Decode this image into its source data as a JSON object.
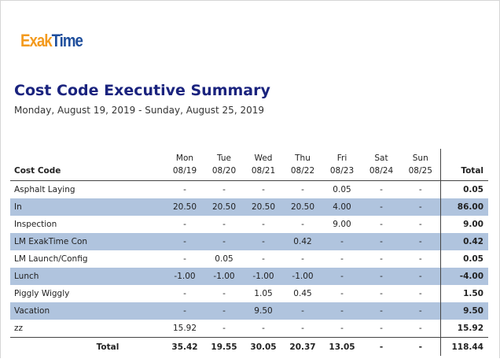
{
  "logo": {
    "part1": "Exak",
    "part2": "Time"
  },
  "report": {
    "title": "Cost Code Executive Summary",
    "date_range": "Monday, August 19, 2019 - Sunday, August 25, 2019"
  },
  "table": {
    "code_header": "Cost Code",
    "total_header": "Total",
    "days": [
      {
        "day": "Mon",
        "date": "08/19"
      },
      {
        "day": "Tue",
        "date": "08/20"
      },
      {
        "day": "Wed",
        "date": "08/21"
      },
      {
        "day": "Thu",
        "date": "08/22"
      },
      {
        "day": "Fri",
        "date": "08/23"
      },
      {
        "day": "Sat",
        "date": "08/24"
      },
      {
        "day": "Sun",
        "date": "08/25"
      }
    ],
    "rows": [
      {
        "code": "Asphalt Laying",
        "values": [
          "-",
          "-",
          "-",
          "-",
          "0.05",
          "-",
          "-"
        ],
        "total": "0.05",
        "shaded": false
      },
      {
        "code": "In",
        "values": [
          "20.50",
          "20.50",
          "20.50",
          "20.50",
          "4.00",
          "-",
          "-"
        ],
        "total": "86.00",
        "shaded": true
      },
      {
        "code": "Inspection",
        "values": [
          "-",
          "-",
          "-",
          "-",
          "9.00",
          "-",
          "-"
        ],
        "total": "9.00",
        "shaded": false
      },
      {
        "code": "LM ExakTime Con",
        "values": [
          "-",
          "-",
          "-",
          "0.42",
          "-",
          "-",
          "-"
        ],
        "total": "0.42",
        "shaded": true
      },
      {
        "code": "LM Launch/Config",
        "values": [
          "-",
          "0.05",
          "-",
          "-",
          "-",
          "-",
          "-"
        ],
        "total": "0.05",
        "shaded": false
      },
      {
        "code": "Lunch",
        "values": [
          "-1.00",
          "-1.00",
          "-1.00",
          "-1.00",
          "-",
          "-",
          "-"
        ],
        "total": "-4.00",
        "shaded": true
      },
      {
        "code": "Piggly Wiggly",
        "values": [
          "-",
          "-",
          "1.05",
          "0.45",
          "-",
          "-",
          "-"
        ],
        "total": "1.50",
        "shaded": false
      },
      {
        "code": "Vacation",
        "values": [
          "-",
          "-",
          "9.50",
          "-",
          "-",
          "-",
          "-"
        ],
        "total": "9.50",
        "shaded": true
      },
      {
        "code": "zz",
        "values": [
          "15.92",
          "-",
          "-",
          "-",
          "-",
          "-",
          "-"
        ],
        "total": "15.92",
        "shaded": false
      }
    ],
    "footer": {
      "label": "Total",
      "values": [
        "35.42",
        "19.55",
        "30.05",
        "20.37",
        "13.05",
        "-",
        "-"
      ],
      "total": "118.44"
    }
  }
}
